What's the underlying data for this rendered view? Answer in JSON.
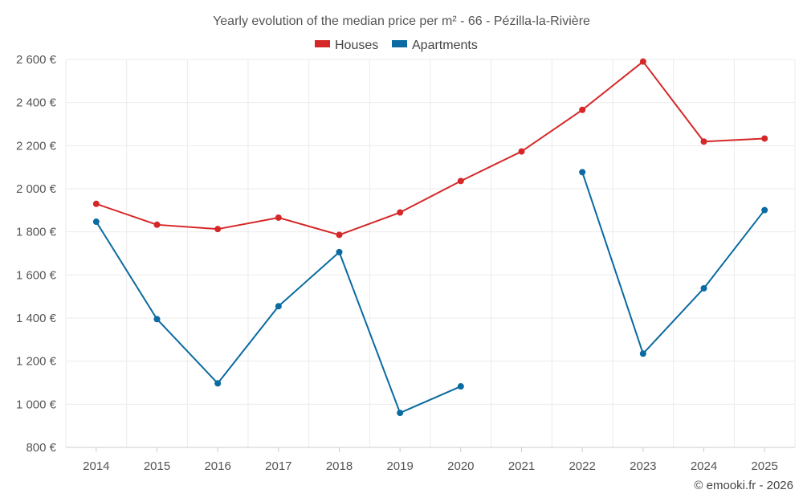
{
  "chart_data": {
    "type": "line",
    "title": "Yearly evolution of the median price per m² - 66 - Pézilla-la-Rivière",
    "xlabel": "",
    "ylabel": "",
    "categories": [
      "2014",
      "2015",
      "2016",
      "2017",
      "2018",
      "2019",
      "2020",
      "2021",
      "2022",
      "2023",
      "2024",
      "2025"
    ],
    "ylim": [
      800,
      2600
    ],
    "yticks": [
      800,
      1000,
      1200,
      1400,
      1600,
      1800,
      2000,
      2200,
      2400,
      2600
    ],
    "ytick_labels": [
      "800 €",
      "1 000 €",
      "1 200 €",
      "1 400 €",
      "1 600 €",
      "1 800 €",
      "2 000 €",
      "2 200 €",
      "2 400 €",
      "2 600 €"
    ],
    "grid": true,
    "legend_position": "top-center",
    "series": [
      {
        "name": "Houses",
        "color": "#d62728",
        "values": [
          1930,
          1833,
          1813,
          1866,
          1786,
          1890,
          2036,
          2173,
          2366,
          2590,
          2219,
          2233
        ]
      },
      {
        "name": "Apartments",
        "color": "#0a6aa1",
        "values": [
          1847,
          1395,
          1097,
          1455,
          1706,
          960,
          1083,
          null,
          2077,
          1235,
          1538,
          1901
        ]
      }
    ]
  },
  "credit": "© emooki.fr - 2026"
}
